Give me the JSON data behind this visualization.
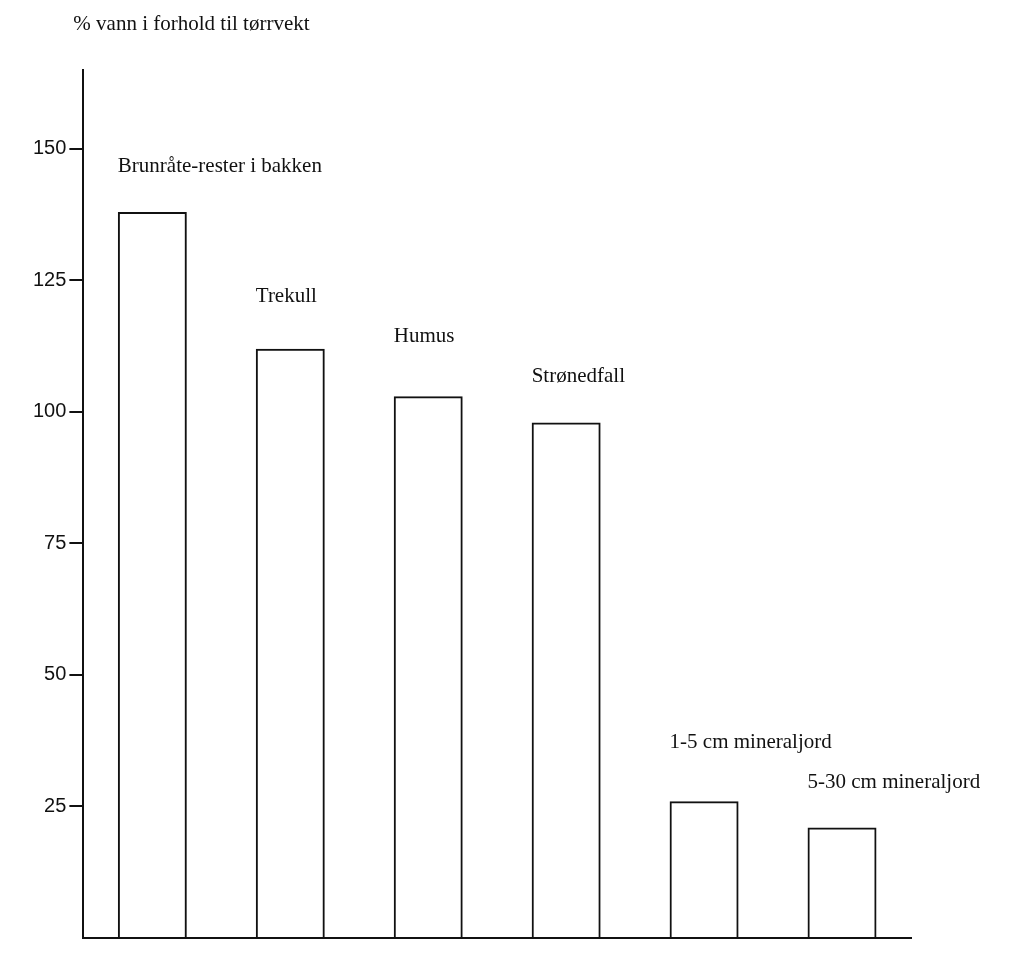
{
  "chart_data": {
    "type": "bar",
    "ylabel": "% vann i forhold til tørrvekt",
    "categories": [
      "Brunråte-rester i bakken",
      "Trekull",
      "Humus",
      "Strønedfall",
      "1-5 cm mineraljord",
      "5-30 cm mineraljord"
    ],
    "values": [
      138,
      112,
      103,
      98,
      26,
      21
    ],
    "color": "#111111",
    "ylim": [
      0,
      165
    ],
    "yticks": [
      25,
      50,
      75,
      100,
      125,
      150
    ],
    "grid": false,
    "legend": false
  }
}
